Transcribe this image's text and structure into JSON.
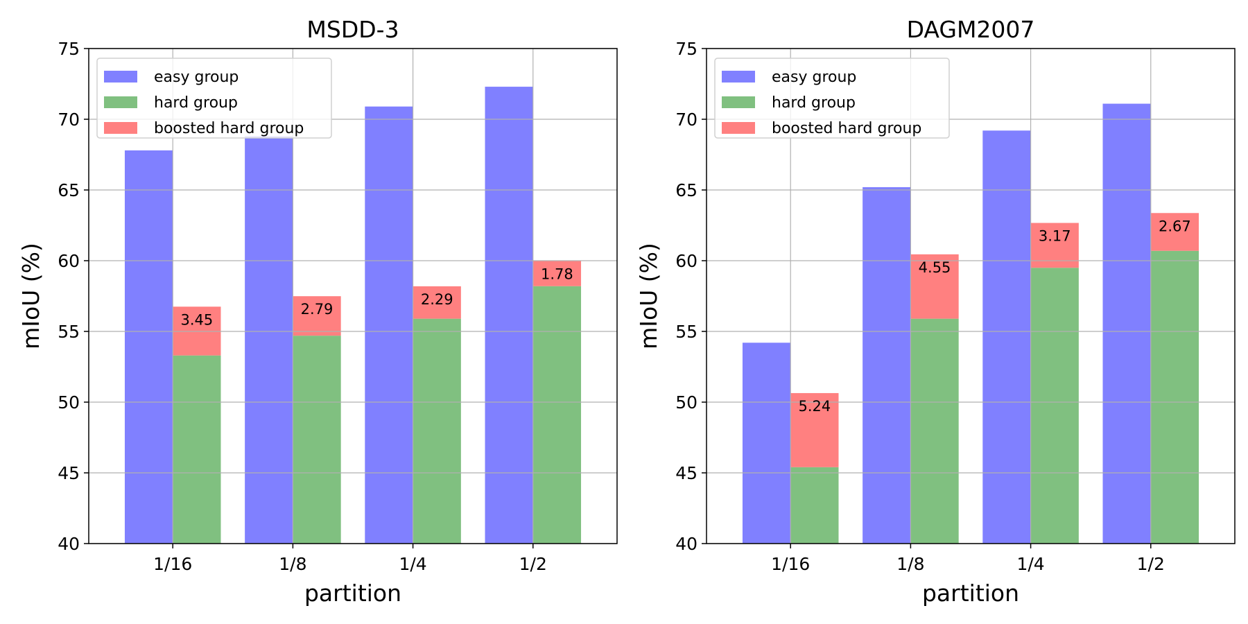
{
  "chart_data": [
    {
      "type": "bar",
      "title": "MSDD-3",
      "xlabel": "partition",
      "ylabel": "mIoU (%)",
      "ylim": [
        40,
        75
      ],
      "yticks": [
        "40",
        "45",
        "50",
        "55",
        "60",
        "65",
        "70",
        "75"
      ],
      "categories": [
        "1/16",
        "1/8",
        "1/4",
        "1/2"
      ],
      "grid": true,
      "legend_position": "top-left",
      "series": [
        {
          "name": "easy group",
          "color": "#8080ff",
          "values": [
            67.8,
            68.8,
            70.9,
            72.3
          ]
        },
        {
          "name": "hard group",
          "color": "#80c080",
          "values": [
            53.3,
            54.7,
            55.9,
            58.2
          ]
        },
        {
          "name": "boosted hard group",
          "color": "#ff8080",
          "values": [
            56.75,
            57.49,
            58.19,
            59.98
          ],
          "stacked_on": "hard group"
        }
      ],
      "data_labels": [
        "3.45",
        "2.79",
        "2.29",
        "1.78"
      ]
    },
    {
      "type": "bar",
      "title": "DAGM2007",
      "xlabel": "partition",
      "ylabel": "mIoU (%)",
      "ylim": [
        40,
        75
      ],
      "yticks": [
        "40",
        "45",
        "50",
        "55",
        "60",
        "65",
        "70",
        "75"
      ],
      "categories": [
        "1/16",
        "1/8",
        "1/4",
        "1/2"
      ],
      "grid": true,
      "legend_position": "top-left",
      "series": [
        {
          "name": "easy group",
          "color": "#8080ff",
          "values": [
            54.2,
            65.2,
            69.2,
            71.1
          ]
        },
        {
          "name": "hard group",
          "color": "#80c080",
          "values": [
            45.4,
            55.9,
            59.5,
            60.7
          ]
        },
        {
          "name": "boosted hard group",
          "color": "#ff8080",
          "values": [
            50.64,
            60.45,
            62.67,
            63.37
          ],
          "stacked_on": "hard group"
        }
      ],
      "data_labels": [
        "5.24",
        "4.55",
        "3.17",
        "2.67"
      ]
    }
  ]
}
